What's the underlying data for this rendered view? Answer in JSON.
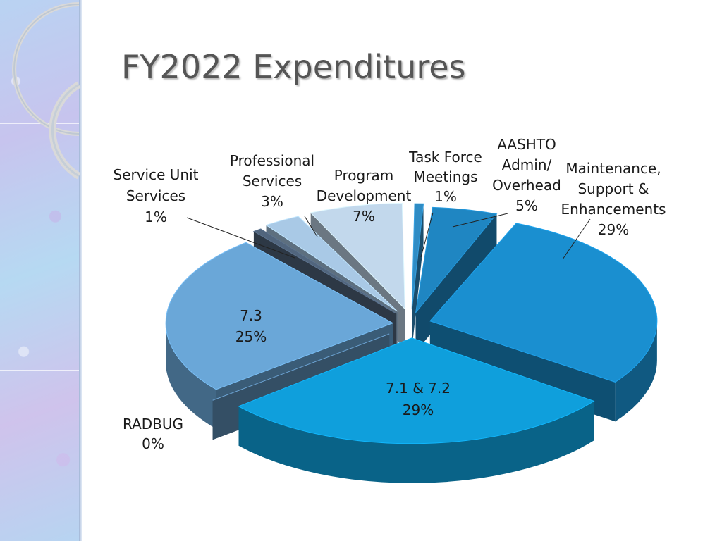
{
  "title": "FY2022 Expenditures",
  "chart_data": {
    "type": "pie",
    "title": "FY2022 Expenditures",
    "slices": [
      {
        "name": "Task Force Meetings",
        "percent_label": "1%",
        "value": 1,
        "color": "#2f8cc4"
      },
      {
        "name": "AASHTO Admin/ Overhead",
        "percent_label": "5%",
        "value": 5,
        "color": "#1f86c2"
      },
      {
        "name": "Maintenance, Support & Enhancements",
        "percent_label": "29%",
        "value": 29,
        "color": "#1a8fd0"
      },
      {
        "name": "7.1 & 7.2",
        "percent_label": "29%",
        "value": 29,
        "color": "#0f9fdc"
      },
      {
        "name": "RADBUG",
        "percent_label": "0%",
        "value": 0,
        "color": "#5f8fb8"
      },
      {
        "name": "7.3",
        "percent_label": "25%",
        "value": 25,
        "color": "#6aa7d8"
      },
      {
        "name": "Service Unit Services",
        "percent_label": "1%",
        "value": 1,
        "color": "#51657d"
      },
      {
        "name": "Professional Services",
        "percent_label": "3%",
        "value": 3,
        "color": "#a9c9e6"
      },
      {
        "name": "Program Development",
        "percent_label": "7%",
        "value": 7,
        "color": "#c2d8ec"
      }
    ],
    "exploded": true,
    "style": "3d"
  },
  "labels": {
    "task_force": [
      "Task Force",
      "Meetings",
      "1%"
    ],
    "aashto": [
      "AASHTO",
      "Admin/",
      "Overhead",
      "5%"
    ],
    "maintenance": [
      "Maintenance,",
      "Support &",
      "Enhancements",
      "29%"
    ],
    "s712": [
      "7.1 & 7.2",
      "29%"
    ],
    "radbug": [
      "RADBUG",
      "0%"
    ],
    "s73": [
      "7.3",
      "25%"
    ],
    "service_unit": [
      "Service Unit",
      "Services",
      "1%"
    ],
    "professional": [
      "Professional",
      "Services",
      "3%"
    ],
    "program_dev": [
      "Program",
      "Development",
      "7%"
    ]
  }
}
